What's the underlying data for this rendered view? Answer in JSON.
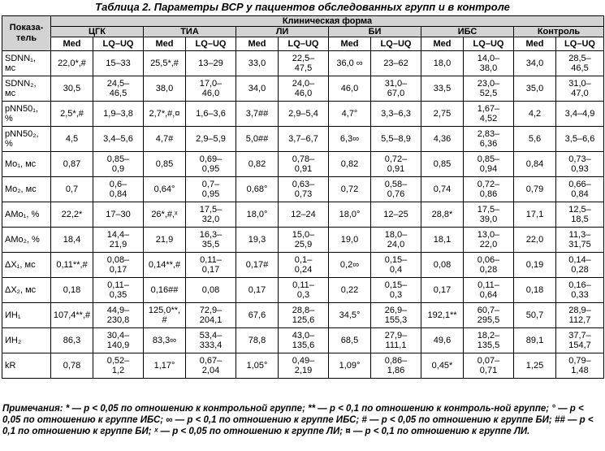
{
  "title": "Таблица 2. Параметры ВСР у пациентов обследованных групп и в контроле",
  "header": {
    "param_label": "Показа-\nтель",
    "clinical_form": "Клиническая форма",
    "groups": [
      "ЦГК",
      "ТИА",
      "ЛИ",
      "БИ",
      "ИБС",
      "Контроль"
    ],
    "med": "Med",
    "lq_uq": "LQ–UQ"
  },
  "rows": [
    {
      "param": "SDNN₁,\nмс",
      "cells": [
        "22,0*,#",
        "15–33",
        "25,5*,#",
        "13–29",
        "33,0",
        "22,5–\n47,5",
        "36,0 ∞",
        "23–62",
        "18,0",
        "14,0–\n38,0",
        "34,0",
        "28,5–\n46,5"
      ]
    },
    {
      "param": "SDNN₂,\nмс",
      "cells": [
        "30,5",
        "24,5–\n46,5",
        "38,0",
        "17,0–\n46,0",
        "34,0",
        "24,0–\n46,0",
        "46,0",
        "31,0–\n67,0",
        "33,5",
        "23,0–\n52,5",
        "35,0",
        "31,0–\n47,0"
      ]
    },
    {
      "param": "pNN50₁,\n%",
      "cells": [
        "2,5*,#",
        "1,9–3,8",
        "2,7*,#,¤",
        "1,6–3,6",
        "3,7##",
        "2,9–5,4",
        "4,7°",
        "3,3–6,3",
        "2,75",
        "1,67–\n4,52",
        "4,2",
        "3,4–4,9"
      ]
    },
    {
      "param": "pNN50₂,\n%",
      "cells": [
        "4,5",
        "3,4–5,6",
        "4,7#",
        "2,9–5,9",
        "5,0##",
        "3,7–6,7",
        "6,3∞",
        "5,5–8,9",
        "4,36",
        "2,83–\n6,36",
        "5,6",
        "3,5–6,6"
      ]
    },
    {
      "param": "Mo₁, мс",
      "cells": [
        "0,87",
        "0,85–\n0,9",
        "0,85",
        "0,69–\n0,95",
        "0,82",
        "0,78–\n0,91",
        "0,82",
        "0,72–\n0,91",
        "0,85",
        "0,85–\n0,94",
        "0,84",
        "0,73–\n0,93"
      ]
    },
    {
      "param": "Mo₂, мс",
      "cells": [
        "0,7",
        "0,6–\n0,84",
        "0,64°",
        "0,7–\n0,95",
        "0,68°",
        "0,63–\n0,73",
        "0,72",
        "0,58–\n0,76",
        "0,74",
        "0,72–\n0,86",
        "0,79",
        "0,66–\n0,84"
      ]
    },
    {
      "param": "AMo₁, %",
      "cells": [
        "22,2*",
        "17–30",
        "26*,#,ˣ",
        "17,5–\n32,0",
        "18,0°",
        "12–24",
        "18,0°",
        "12–25",
        "28,8*",
        "17,5–\n39,0",
        "17,1",
        "12,5–\n18,5"
      ]
    },
    {
      "param": "AMo₂, %",
      "cells": [
        "18,4",
        "14,4–\n21,9",
        "21,9",
        "16,3–\n35,5",
        "19,3",
        "15,0–\n25,9",
        "19,0",
        "18,0–\n24,0",
        "18,1",
        "13,0–\n22,0",
        "22,0",
        "11,3–\n31,75"
      ]
    },
    {
      "param": "ΔX₁, мс",
      "cells": [
        "0,11**,#",
        "0,08–\n0,17",
        "0,14**,#",
        "0,11–\n0,17",
        "0,17#",
        "0,1–\n0,24",
        "0,2∞",
        "0,15–\n0,4",
        "0,08",
        "0,06–\n0,28",
        "0,19",
        "0,14–\n0,28"
      ]
    },
    {
      "param": "ΔX₂, мс",
      "cells": [
        "0,18",
        "0,11–\n0,35",
        "0,16##",
        "0,08",
        "0,17",
        "0,11–\n0,3",
        "0,22",
        "0,15–\n0,3",
        "0,17",
        "0,11–\n0,64",
        "0,18",
        "0,16–\n0,33"
      ]
    },
    {
      "param": "ИН₁",
      "cells": [
        "107,4**,#",
        "44,9–\n230,8",
        "125,0**,\n#",
        "72,9–\n204,1",
        "67,6",
        "28,8–\n125,6",
        "34,5°",
        "26,9–\n155,3",
        "192,1**",
        "60,7–\n295,5",
        "50,7",
        "28,9–\n112,7"
      ]
    },
    {
      "param": "ИН₂",
      "cells": [
        "86,3",
        "30,4–\n140,9",
        "83,3∞",
        "53,4–\n333,4",
        "78,8",
        "43,0–\n135,6",
        "68,5",
        "27,9–\n111,1",
        "49,6",
        "18,2–\n135,5",
        "89,1",
        "37,7–\n154,7"
      ]
    },
    {
      "param": "kR",
      "cells": [
        "0,78",
        "0,52–\n1,2",
        "1,17°",
        "0,67–\n2,04",
        "1,05°",
        "0,49–\n2,19",
        "1,09°",
        "0,86–\n1,86",
        "0,45*",
        "0,07–\n0,71",
        "1,25",
        "0,79–\n1,48"
      ]
    }
  ],
  "notes": {
    "lead": "Примечания:",
    "text": " * — p < 0,05 по отношению к контрольной группе; ** — p < 0,1 по отношению к контроль-ной группе; ° — p < 0,05 по отношению к группе ИБС; ∞ — p < 0,1 по отношению к группе ИБС; # — p < 0,05 по отношению к группе БИ; ## — p < 0,1 по отношению к группе БИ; ˣ — p < 0,05 по отношению к группе ЛИ; ¤ — p < 0,1 по отношению к группе ЛИ."
  }
}
